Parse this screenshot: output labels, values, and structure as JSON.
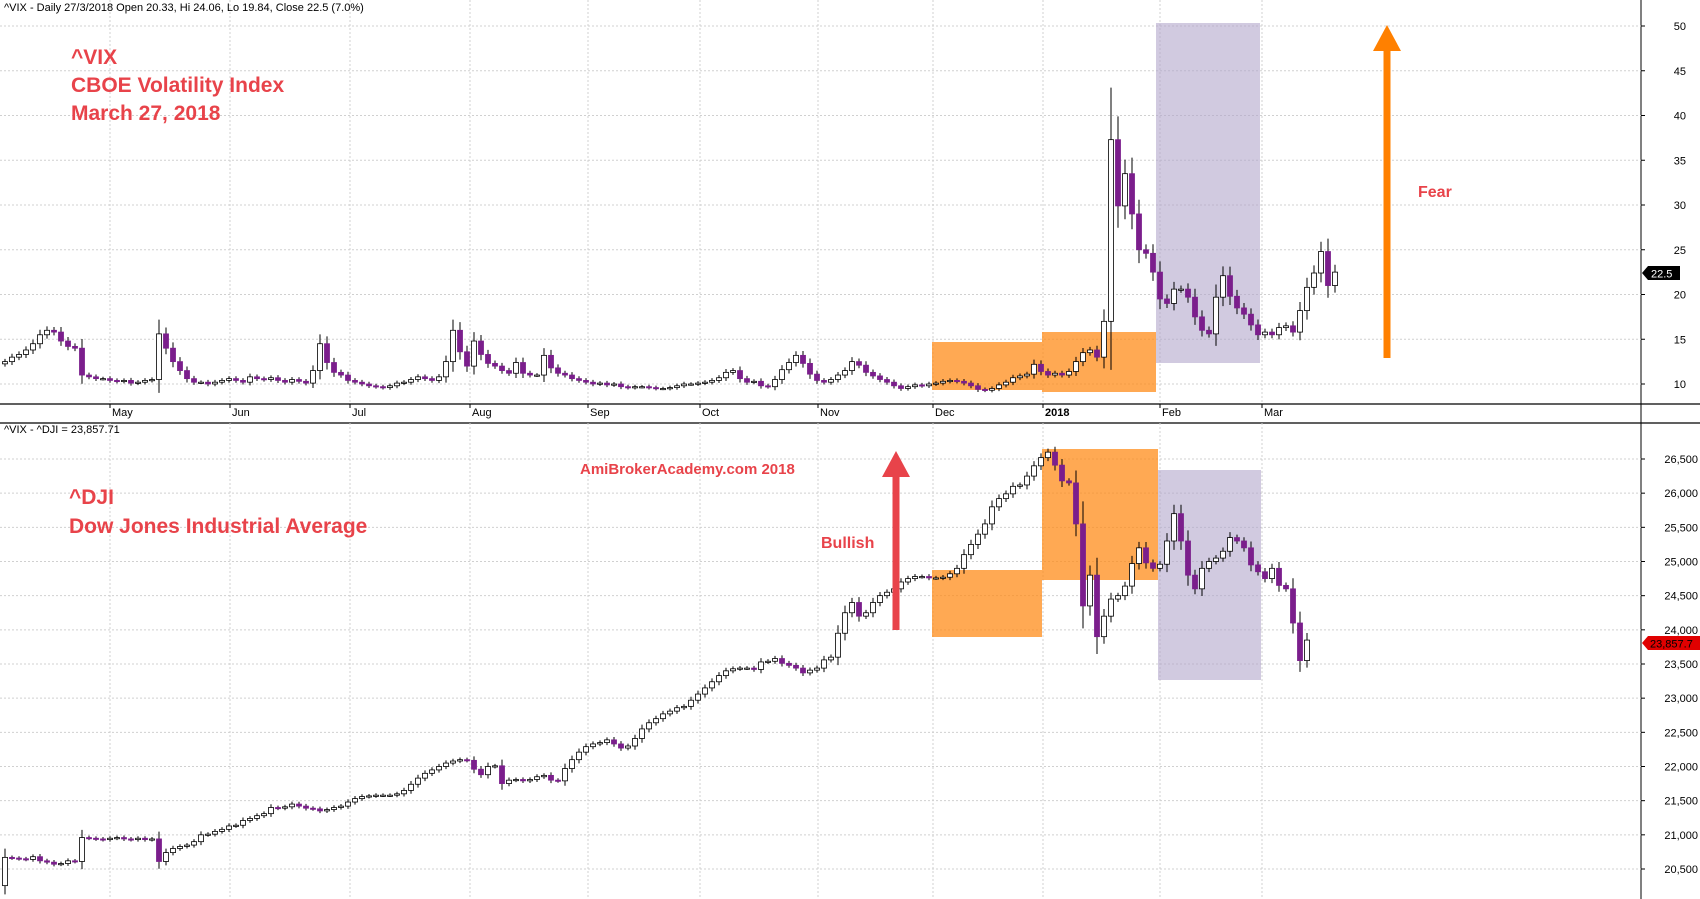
{
  "colors": {
    "annotation": "#e8434a",
    "fear_arrow": "#ff8000",
    "bull_arrow": "#e8434a",
    "bull_box": "#ff8c1a",
    "fear_box": "#b3a6cc",
    "up_candle": "#ffffff",
    "down_candle": "#7b1e8c",
    "dji_price_tag": "#e00000",
    "vix_price_tag": "#000000",
    "grid": "#d0d0d0"
  },
  "vix_panel": {
    "info_line": "^VIX - Daily 27/3/2018 Open 20.33, Hi 24.06, Lo 19.84, Close 22.5 (7.0%)",
    "title_lines": [
      "^VIX",
      "CBOE Volatility Index",
      "March 27, 2018"
    ],
    "fear_label": "Fear",
    "last_price": "22.5",
    "month_labels": [
      "May",
      "Jun",
      "Jul",
      "Aug",
      "Sep",
      "Oct",
      "Nov",
      "Dec",
      "2018",
      "Feb",
      "Mar"
    ]
  },
  "dji_panel": {
    "info_line": "^VIX - ^DJI = 23,857.71",
    "watermark": "AmiBrokerAcademy.com  2018",
    "title_lines": [
      "^DJI",
      "Dow Jones Industrial Average"
    ],
    "bullish_label": "Bullish",
    "last_price": "23,857.7"
  },
  "chart_data": [
    {
      "type": "candlestick",
      "title": "^VIX CBOE Volatility Index",
      "ylim": [
        7,
        52
      ],
      "y_ticks": [
        10,
        15,
        20,
        25,
        30,
        35,
        40,
        45,
        50
      ],
      "y_tick_labels": [
        "10",
        "15",
        "20",
        "25",
        "30",
        "35",
        "40",
        "45",
        "50"
      ],
      "x_labels": [
        "May",
        "Jun",
        "Jul",
        "Aug",
        "Sep",
        "Oct",
        "Nov",
        "Dec",
        "2018",
        "Feb",
        "Mar"
      ],
      "last_close": 22.5,
      "grid": true,
      "series": [
        {
          "name": "^VIX",
          "close": [
            12.5,
            13,
            13.3,
            13.8,
            14.5,
            15.5,
            16,
            15.8,
            14.8,
            14.2,
            14,
            11,
            10.8,
            10.6,
            10.6,
            10.4,
            10.3,
            10.4,
            10.1,
            10.2,
            10.4,
            10.5,
            15.6,
            14,
            12.5,
            11.5,
            10.6,
            10.2,
            10.2,
            10,
            10.2,
            10.4,
            10.6,
            10.4,
            10.2,
            10.8,
            10.6,
            10.5,
            10.7,
            10.4,
            10.2,
            10.5,
            10.3,
            10.1,
            11.5,
            14.5,
            12.4,
            11.3,
            11,
            10.4,
            10.2,
            10,
            9.8,
            9.7,
            9.6,
            9.8,
            10.1,
            10.2,
            10.5,
            10.8,
            10.6,
            10.4,
            10.8,
            12.5,
            16,
            13.6,
            12,
            14.8,
            13.3,
            12.3,
            12,
            11.5,
            11.2,
            12.4,
            11.2,
            11,
            11,
            13.2,
            11.8,
            11.2,
            11,
            10.6,
            10.4,
            10.2,
            10,
            10.1,
            9.9,
            10,
            9.7,
            9.6,
            9.7,
            9.7,
            9.6,
            9.5,
            9.5,
            9.6,
            9.8,
            10,
            10,
            10.1,
            10.2,
            10.4,
            10.7,
            11.3,
            11.5,
            10.6,
            10.2,
            10.3,
            9.8,
            9.7,
            10.5,
            11.6,
            12.4,
            13.2,
            12.3,
            11.1,
            10.4,
            10.2,
            10.5,
            11,
            11.5,
            12.5,
            12.1,
            11.3,
            10.9,
            10.5,
            10.2,
            9.8,
            9.5,
            9.7,
            9.9,
            9.8,
            10,
            10.1,
            10.3,
            10.4,
            10.3,
            10.1,
            9.8,
            9.4,
            9.3,
            9.5,
            9.9,
            10.2,
            10.7,
            10.9,
            11.1,
            12.2,
            11.4,
            11,
            11.2,
            11,
            11.4,
            12.5,
            13.5,
            13.8,
            13,
            17,
            37.3,
            29.9,
            33.5,
            29,
            25,
            24.6,
            22.5,
            19.5,
            19,
            20.6,
            20.6,
            19.7,
            17.5,
            16,
            15.6,
            19.7,
            22.1,
            19.8,
            18.5,
            17.8,
            16.6,
            15.5,
            15.8,
            15.5,
            16.3,
            16.5,
            15.8,
            18.2,
            20.8,
            22.4,
            24.8,
            21,
            22.5
          ]
        }
      ]
    },
    {
      "type": "candlestick",
      "title": "^DJI Dow Jones Industrial Average",
      "ylim": [
        20300,
        26800
      ],
      "y_ticks": [
        20500,
        21000,
        21500,
        22000,
        22500,
        23000,
        23500,
        24000,
        24500,
        25000,
        25500,
        26000,
        26500
      ],
      "y_tick_labels": [
        "20,500",
        "21,000",
        "21,500",
        "22,000",
        "22,500",
        "23,000",
        "23,500",
        "24,000",
        "24,500",
        "25,000",
        "25,500",
        "26,000",
        "26,500"
      ],
      "last_close": 23857.71,
      "grid": true,
      "series": [
        {
          "name": "^DJI",
          "close": [
            20670,
            20660,
            20650,
            20640,
            20680,
            20620,
            20600,
            20570,
            20580,
            20620,
            20610,
            20960,
            20950,
            20940,
            20930,
            20950,
            20960,
            20940,
            20930,
            20950,
            20930,
            20940,
            20610,
            20740,
            20800,
            20830,
            20850,
            20900,
            21000,
            21010,
            21050,
            21080,
            21130,
            21140,
            21210,
            21240,
            21280,
            21310,
            21400,
            21390,
            21410,
            21450,
            21420,
            21390,
            21380,
            21350,
            21370,
            21400,
            21420,
            21480,
            21530,
            21560,
            21570,
            21580,
            21580,
            21580,
            21600,
            21650,
            21740,
            21830,
            21900,
            21950,
            22000,
            22050,
            22080,
            22100,
            22090,
            21960,
            21880,
            22000,
            22010,
            21750,
            21800,
            21810,
            21790,
            21810,
            21850,
            21870,
            21800,
            21790,
            21970,
            22100,
            22210,
            22290,
            22330,
            22350,
            22390,
            22330,
            22270,
            22300,
            22410,
            22550,
            22640,
            22700,
            22770,
            22810,
            22860,
            22880,
            22970,
            23060,
            23150,
            23240,
            23330,
            23400,
            23430,
            23440,
            23440,
            23420,
            23530,
            23540,
            23580,
            23510,
            23480,
            23440,
            23370,
            23410,
            23440,
            23560,
            23600,
            23950,
            24250,
            24400,
            24200,
            24250,
            24400,
            24500,
            24550,
            24600,
            24700,
            24750,
            24780,
            24780,
            24760,
            24760,
            24770,
            24820,
            24900,
            25100,
            25250,
            25400,
            25550,
            25800,
            25920,
            25990,
            26100,
            26120,
            26250,
            26400,
            26520,
            26600,
            26410,
            26180,
            26150,
            25550,
            24350,
            24800,
            23900,
            24200,
            24450,
            24500,
            24640,
            24970,
            25200,
            24980,
            24900,
            24960,
            25300,
            25700,
            25300,
            24800,
            24600,
            24900,
            25000,
            25050,
            25150,
            25350,
            25300,
            25200,
            24950,
            24850,
            24750,
            24900,
            24650,
            24600,
            24100,
            23550,
            23850
          ]
        }
      ]
    }
  ]
}
